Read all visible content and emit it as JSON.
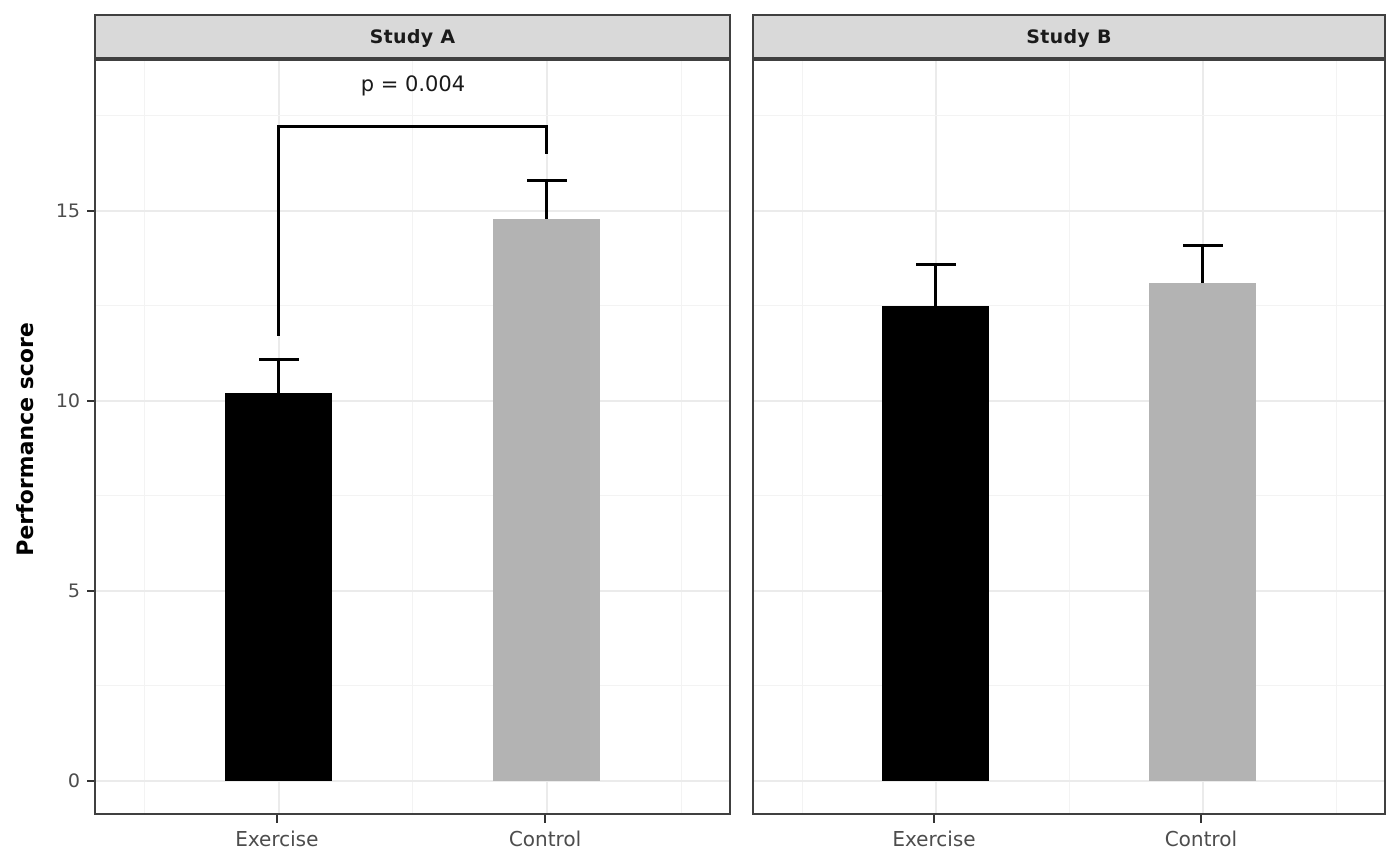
{
  "chart_data": {
    "type": "bar",
    "title": "",
    "ylabel": "Performance score",
    "xlabel": "",
    "categories": [
      "Exercise",
      "Control"
    ],
    "yticks": [
      0,
      5,
      10,
      15
    ],
    "ylim": [
      -0.9,
      19.0
    ],
    "grid": "major and minor, light gray on white panel",
    "legend": "none",
    "facets": [
      {
        "label": "Study A",
        "bars": [
          {
            "category": "Exercise",
            "mean": 10.2,
            "error_top": 11.1,
            "color": "#000000"
          },
          {
            "category": "Control",
            "mean": 14.8,
            "error_top": 15.8,
            "color": "#b3b3b3"
          }
        ],
        "annotation": {
          "text": "p = 0.004",
          "text_y": 18.35,
          "bracket": {
            "x1_category": "Exercise",
            "x2_category": "Control",
            "y_top": 17.25,
            "y_arm1_bottom": 11.7,
            "y_arm2_bottom": 16.5
          }
        }
      },
      {
        "label": "Study B",
        "bars": [
          {
            "category": "Exercise",
            "mean": 12.5,
            "error_top": 13.6,
            "color": "#000000"
          },
          {
            "category": "Control",
            "mean": 13.1,
            "error_top": 14.1,
            "color": "#b3b3b3"
          }
        ]
      }
    ]
  },
  "style": {
    "strip_bg": "#d9d9d9",
    "strip_text_color": "#1a1a1a",
    "panel_border": "#404040",
    "grid_major": "#ebebeb",
    "grid_minor": "#f3f3f3",
    "axis_text_color": "#4d4d4d",
    "tick_color": "#333333",
    "bar_black": "#000000",
    "bar_gray": "#b3b3b3",
    "error_bar_color": "#000000",
    "annotation_color": "#1a1a1a"
  }
}
